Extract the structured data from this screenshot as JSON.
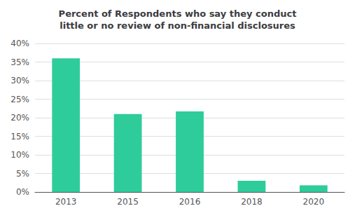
{
  "chart_data": {
    "type": "bar",
    "title": "Percent of Respondents who say they conduct\nlittle or no review of non-financial disclosures",
    "categories": [
      "2013",
      "2015",
      "2016",
      "2018",
      "2020"
    ],
    "values": [
      0.36,
      0.21,
      0.217,
      0.03,
      0.018
    ],
    "color": "#2ECC9A",
    "ylim": [
      0,
      0.4
    ],
    "yticks": [
      {
        "value": 0.0,
        "label": "0%"
      },
      {
        "value": 0.05,
        "label": "5%"
      },
      {
        "value": 0.1,
        "label": "10%"
      },
      {
        "value": 0.15,
        "label": "15%"
      },
      {
        "value": 0.2,
        "label": "20%"
      },
      {
        "value": 0.25,
        "label": "25%"
      },
      {
        "value": 0.3,
        "label": "30%"
      },
      {
        "value": 0.35,
        "label": "35%"
      },
      {
        "value": 0.4,
        "label": "40%"
      }
    ],
    "grid": true
  }
}
